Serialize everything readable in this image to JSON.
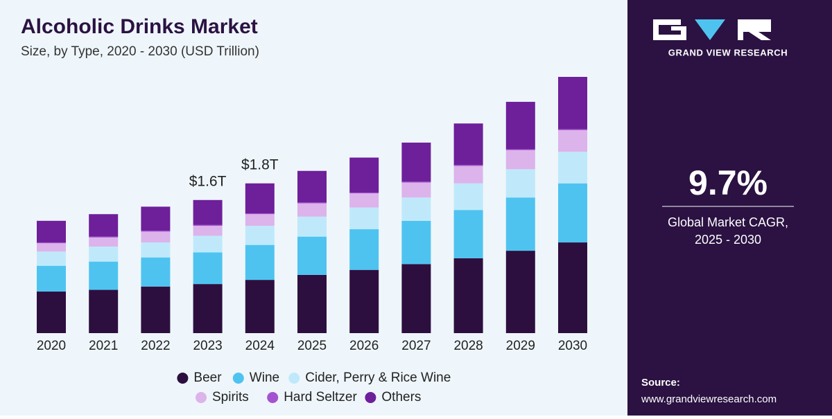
{
  "chart_data": {
    "type": "stacked_bar",
    "title": "Alcoholic Drinks Market",
    "subtitle": "Size, by Type, 2020 - 2030 (USD Trillion)",
    "categories": [
      "2020",
      "2021",
      "2022",
      "2023",
      "2024",
      "2025",
      "2026",
      "2027",
      "2028",
      "2029",
      "2030"
    ],
    "series": [
      {
        "name": "Beer",
        "color": "#2d0f3f",
        "values": [
          0.5,
          0.52,
          0.56,
          0.59,
          0.64,
          0.7,
          0.76,
          0.83,
          0.9,
          0.99,
          1.09
        ]
      },
      {
        "name": "Wine",
        "color": "#4fc3f0",
        "values": [
          0.31,
          0.34,
          0.35,
          0.38,
          0.42,
          0.46,
          0.49,
          0.52,
          0.58,
          0.64,
          0.71
        ]
      },
      {
        "name": "Cider, Perry & Rice Wine",
        "color": "#bfe9fa",
        "values": [
          0.17,
          0.18,
          0.18,
          0.2,
          0.23,
          0.24,
          0.26,
          0.28,
          0.32,
          0.34,
          0.38
        ]
      },
      {
        "name": "Spirits",
        "color": "#dcb3ea",
        "values": [
          0.1,
          0.11,
          0.13,
          0.12,
          0.14,
          0.16,
          0.17,
          0.18,
          0.21,
          0.23,
          0.26
        ]
      },
      {
        "name": "Hard Seltzer",
        "color": "#a453d0",
        "values": [
          0.01,
          0.01,
          0.01,
          0.01,
          0.01,
          0.01,
          0.01,
          0.01,
          0.01,
          0.01,
          0.01
        ]
      },
      {
        "name": "Others",
        "color": "#6e1f9a",
        "values": [
          0.26,
          0.27,
          0.29,
          0.3,
          0.36,
          0.38,
          0.42,
          0.47,
          0.5,
          0.57,
          0.63
        ]
      }
    ],
    "annotations": [
      {
        "category": "2023",
        "label": "$1.6T"
      },
      {
        "category": "2024",
        "label": "$1.8T"
      }
    ]
  },
  "panel": {
    "brand": "GRAND VIEW RESEARCH",
    "cagr": "9.7%",
    "cagr_label_1": "Global Market CAGR,",
    "cagr_label_2": "2025 - 2030",
    "source_label": "Source:",
    "source_url": "www.grandviewresearch.com"
  }
}
